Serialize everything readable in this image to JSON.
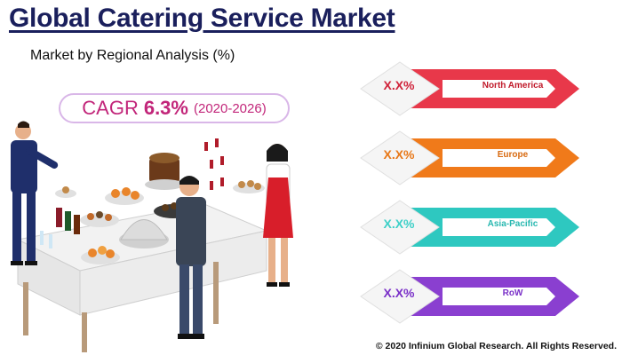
{
  "header": {
    "title": "Global Catering Service Market",
    "subtitle": "Market by Regional Analysis (%)"
  },
  "cagr": {
    "label": "CAGR",
    "value": "6.3%",
    "period": "(2020-2026)"
  },
  "chart_data": {
    "type": "table",
    "title": "Global Catering Service Market",
    "subtitle": "Market by Regional Analysis (%)",
    "categories": [
      "North America",
      "Europe",
      "Asia-Pacific",
      "RoW"
    ],
    "values": [
      "X.X%",
      "X.X%",
      "X.X%",
      "X.X%"
    ],
    "colors": [
      "#e8384a",
      "#f07a1a",
      "#2ec8c0",
      "#8a3fd0"
    ],
    "value_colors": [
      "#d0233a",
      "#e87818",
      "#3ed0c8",
      "#7a30c8"
    ]
  },
  "footer": {
    "copyright": "© 2020 Infinium Global Research. All Rights Reserved."
  }
}
